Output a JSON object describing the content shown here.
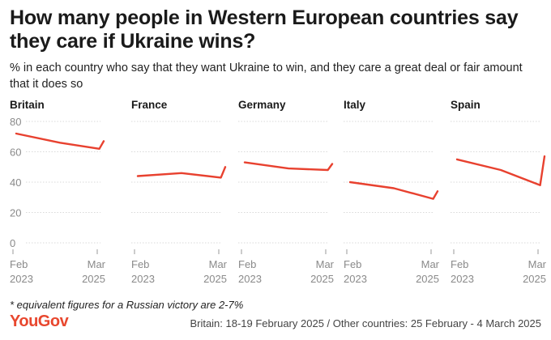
{
  "header": {
    "title": "How many people in Western European countries say they care if Ukraine wins?",
    "subtitle": "% in each country who say that they want Ukraine to win, and they care a great deal or fair amount that it does so"
  },
  "footer": {
    "footnote": "* equivalent figures for a Russian victory are 2-7%",
    "brand": "YouGov",
    "source": "Britain: 18-19 February 2025 / Other countries: 25 February - 4 March 2025"
  },
  "colors": {
    "line": "#e8412f",
    "grid": "#d9d9d9",
    "axis_text": "#8a8a8a",
    "brand": "#e8472e"
  },
  "chart_data": {
    "type": "line",
    "y_ticks": [
      "80",
      "60",
      "40",
      "20",
      "0"
    ],
    "ylim": [
      0,
      80
    ],
    "grid": true,
    "x_tick_labels": [
      {
        "month": "Feb",
        "year": "2023"
      },
      {
        "month": "Mar",
        "year": "2025"
      }
    ],
    "panels": [
      {
        "name": "Britain",
        "values": [
          72,
          66,
          62,
          67
        ]
      },
      {
        "name": "France",
        "values": [
          44,
          46,
          43,
          50
        ]
      },
      {
        "name": "Germany",
        "values": [
          53,
          49,
          48,
          52
        ]
      },
      {
        "name": "Italy",
        "values": [
          40,
          36,
          29,
          34
        ]
      },
      {
        "name": "Spain",
        "values": [
          55,
          48,
          38,
          57
        ]
      }
    ],
    "x_positions": [
      0,
      0.5,
      0.95,
      1.0
    ]
  }
}
